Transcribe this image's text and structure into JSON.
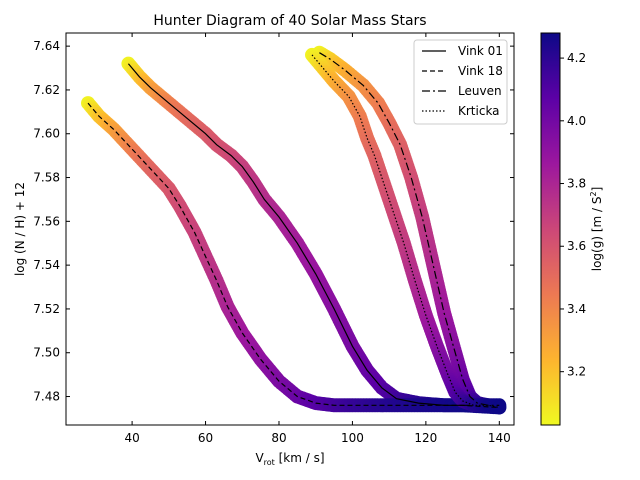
{
  "chart_data": {
    "type": "line",
    "title": "Hunter Diagram of 40 Solar Mass Stars",
    "xlabel_main": "V",
    "xlabel_sub": "rot",
    "xlabel_unit": " [km / s]",
    "ylabel": "log (N / H) + 12",
    "xlim": [
      22,
      144
    ],
    "ylim": [
      7.467,
      7.646
    ],
    "x_ticks": [
      40,
      60,
      80,
      100,
      120,
      140
    ],
    "y_ticks": [
      7.48,
      7.5,
      7.52,
      7.54,
      7.56,
      7.58,
      7.6,
      7.62,
      7.64
    ],
    "colorbar": {
      "label_main": "log(g) [m / S",
      "label_sup": "2",
      "label_end": "]",
      "range": [
        3.03,
        4.28
      ],
      "ticks": [
        3.2,
        3.4,
        3.6,
        3.8,
        4.0,
        4.2
      ],
      "colormap": "plasma",
      "stops": [
        "#f0f921",
        "#fdb42f",
        "#ed7953",
        "#cc4778",
        "#9c179e",
        "#5c01a6",
        "#0d0887"
      ]
    },
    "legend": {
      "position": "top-right"
    },
    "series": [
      {
        "name": "Vink 01",
        "dash": "solid",
        "points": [
          [
            39,
            7.632,
            3.05
          ],
          [
            42,
            7.626,
            3.18
          ],
          [
            45,
            7.621,
            3.3
          ],
          [
            50,
            7.614,
            3.42
          ],
          [
            55,
            7.607,
            3.5
          ],
          [
            60,
            7.6,
            3.56
          ],
          [
            63,
            7.595,
            3.6
          ],
          [
            67,
            7.59,
            3.64
          ],
          [
            70,
            7.585,
            3.68
          ],
          [
            73,
            7.578,
            3.72
          ],
          [
            76,
            7.57,
            3.76
          ],
          [
            80,
            7.562,
            3.8
          ],
          [
            85,
            7.55,
            3.84
          ],
          [
            90,
            7.536,
            3.88
          ],
          [
            95,
            7.52,
            3.93
          ],
          [
            100,
            7.503,
            3.98
          ],
          [
            104,
            7.492,
            4.03
          ],
          [
            108,
            7.484,
            4.08
          ],
          [
            112,
            7.479,
            4.14
          ],
          [
            118,
            7.477,
            4.2
          ],
          [
            125,
            7.476,
            4.25
          ],
          [
            132,
            7.476,
            4.28
          ]
        ]
      },
      {
        "name": "Vink 18",
        "dash": "dashed",
        "points": [
          [
            28,
            7.614,
            3.05
          ],
          [
            31,
            7.608,
            3.18
          ],
          [
            35,
            7.602,
            3.3
          ],
          [
            40,
            7.593,
            3.42
          ],
          [
            45,
            7.584,
            3.52
          ],
          [
            50,
            7.575,
            3.58
          ],
          [
            53,
            7.567,
            3.63
          ],
          [
            57,
            7.555,
            3.67
          ],
          [
            60,
            7.544,
            3.71
          ],
          [
            63,
            7.533,
            3.75
          ],
          [
            66,
            7.521,
            3.8
          ],
          [
            70,
            7.509,
            3.85
          ],
          [
            75,
            7.497,
            3.9
          ],
          [
            80,
            7.487,
            3.96
          ],
          [
            85,
            7.48,
            4.02
          ],
          [
            90,
            7.477,
            4.08
          ],
          [
            95,
            7.476,
            4.13
          ],
          [
            100,
            7.476,
            4.17
          ],
          [
            110,
            7.476,
            4.22
          ],
          [
            120,
            7.476,
            4.25
          ],
          [
            130,
            7.476,
            4.27
          ],
          [
            140,
            7.475,
            4.28
          ]
        ]
      },
      {
        "name": "Leuven",
        "dash": "dashdot",
        "points": [
          [
            91,
            7.637,
            3.05
          ],
          [
            94,
            7.634,
            3.15
          ],
          [
            98,
            7.629,
            3.25
          ],
          [
            103,
            7.622,
            3.35
          ],
          [
            107,
            7.614,
            3.42
          ],
          [
            110,
            7.605,
            3.48
          ],
          [
            113,
            7.595,
            3.54
          ],
          [
            116,
            7.58,
            3.62
          ],
          [
            119,
            7.562,
            3.7
          ],
          [
            122,
            7.54,
            3.78
          ],
          [
            125,
            7.518,
            3.86
          ],
          [
            128,
            7.5,
            3.94
          ],
          [
            130,
            7.488,
            4.02
          ],
          [
            132,
            7.48,
            4.1
          ],
          [
            134,
            7.477,
            4.18
          ],
          [
            137,
            7.476,
            4.24
          ],
          [
            140,
            7.476,
            4.28
          ]
        ]
      },
      {
        "name": "Krticka",
        "dash": "dotted",
        "points": [
          [
            89,
            7.636,
            3.05
          ],
          [
            92,
            7.63,
            3.15
          ],
          [
            95,
            7.624,
            3.25
          ],
          [
            99,
            7.617,
            3.35
          ],
          [
            102,
            7.608,
            3.42
          ],
          [
            104,
            7.598,
            3.48
          ],
          [
            106,
            7.59,
            3.53
          ],
          [
            108,
            7.58,
            3.58
          ],
          [
            111,
            7.565,
            3.64
          ],
          [
            114,
            7.55,
            3.7
          ],
          [
            117,
            7.533,
            3.77
          ],
          [
            120,
            7.517,
            3.84
          ],
          [
            123,
            7.503,
            3.92
          ],
          [
            126,
            7.49,
            4.0
          ],
          [
            128,
            7.482,
            4.08
          ],
          [
            130,
            7.478,
            4.15
          ],
          [
            133,
            7.476,
            4.22
          ],
          [
            137,
            7.476,
            4.27
          ],
          [
            140,
            7.475,
            4.28
          ]
        ]
      }
    ]
  }
}
